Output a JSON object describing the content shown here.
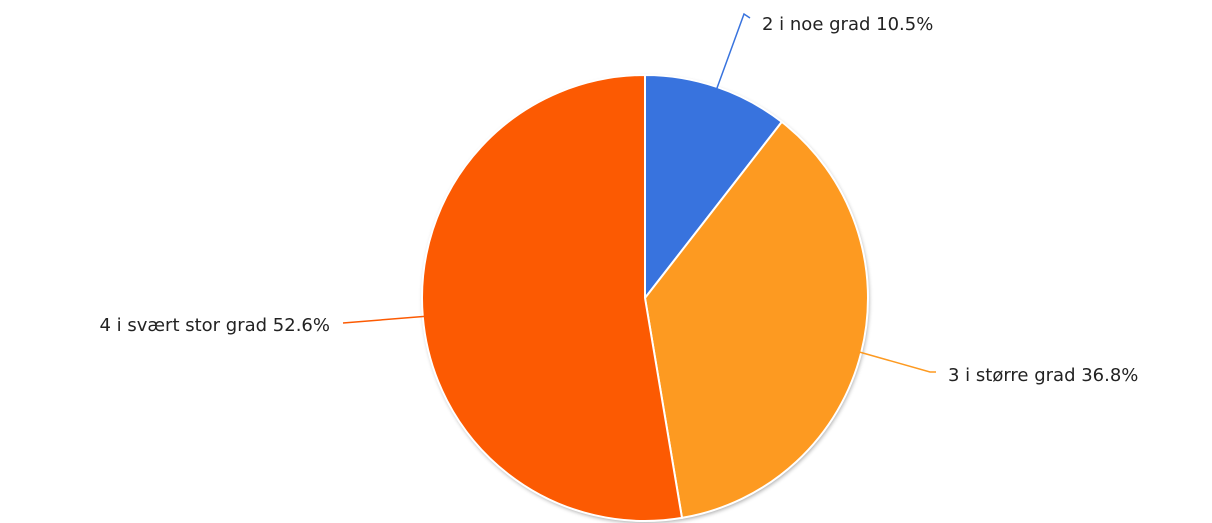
{
  "chart_data": {
    "type": "pie",
    "title": "",
    "start_angle_deg": 0,
    "direction": "clockwise",
    "slices": [
      {
        "name": "2 i noe grad",
        "label": "2 i noe grad 10.5%",
        "value": 10.5,
        "color": "#3873de"
      },
      {
        "name": "3 i større grad",
        "label": "3 i større grad 36.8%",
        "value": 36.8,
        "color": "#fd9a21"
      },
      {
        "name": "4 i svært stor grad",
        "label": "4 i svært stor grad 52.6%",
        "value": 52.6,
        "color": "#fc5a02"
      }
    ]
  }
}
